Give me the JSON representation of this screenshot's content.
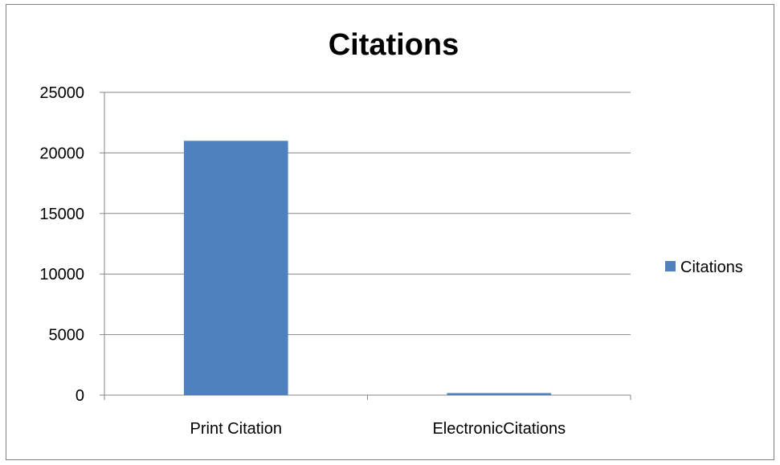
{
  "chart_data": {
    "type": "bar",
    "title": "Citations",
    "categories": [
      "Print Citation",
      "ElectronicCitations"
    ],
    "series": [
      {
        "name": "Citations",
        "values": [
          21000,
          170
        ],
        "color": "#4f81bd"
      }
    ],
    "ylim": [
      0,
      25000
    ],
    "yticks": [
      0,
      5000,
      10000,
      15000,
      20000,
      25000
    ],
    "grid": true,
    "legend_position": "right"
  }
}
